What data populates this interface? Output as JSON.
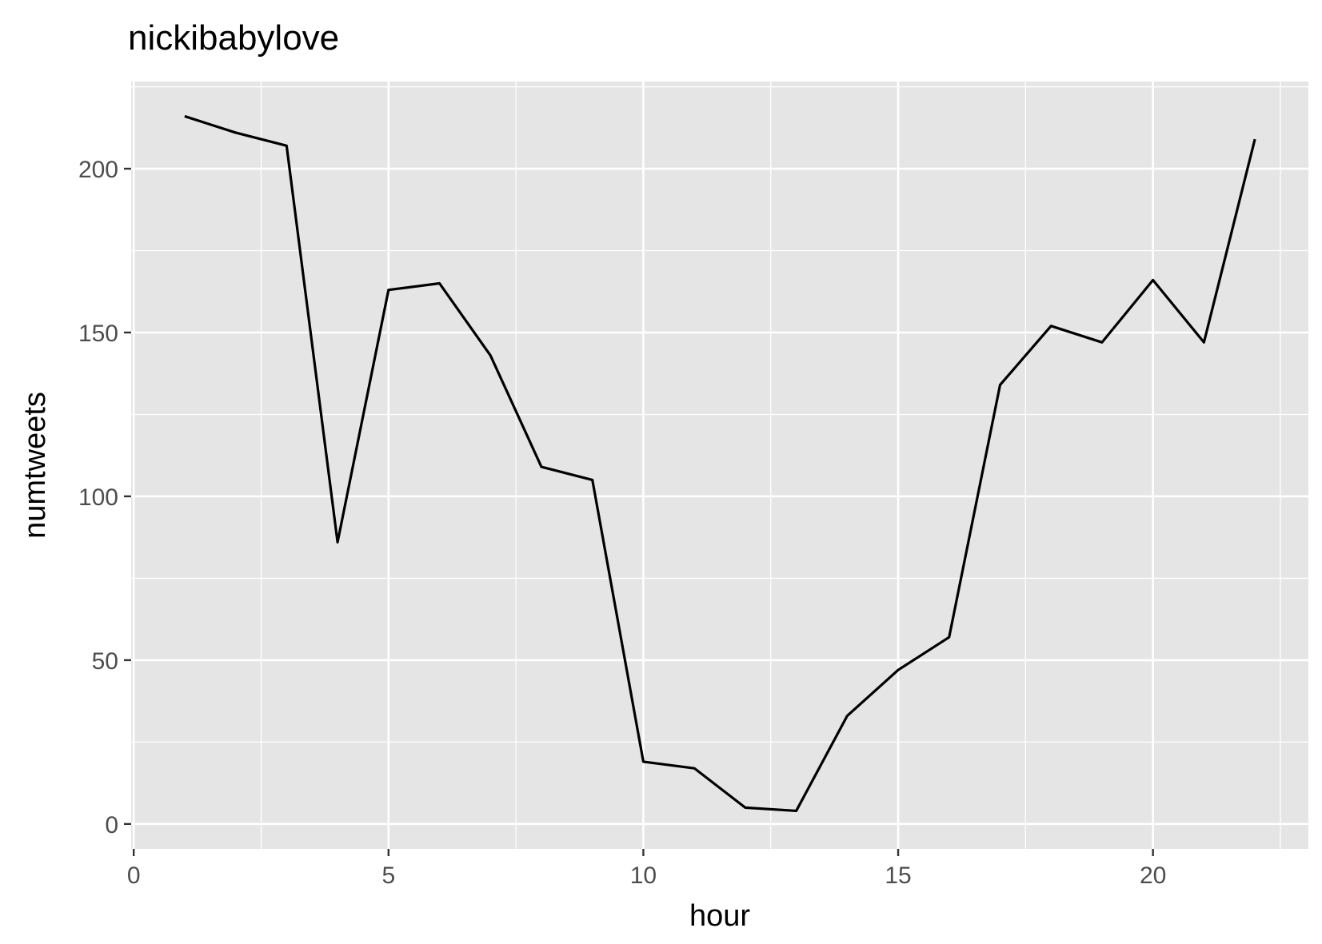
{
  "chart_data": {
    "type": "line",
    "title": "nickibabylove",
    "xlabel": "hour",
    "ylabel": "numtweets",
    "xlim": [
      -0.05,
      23.05
    ],
    "ylim": [
      -7.6,
      226.6
    ],
    "x_ticks": [
      0,
      5,
      10,
      15,
      20
    ],
    "x_minor": [
      2.5,
      7.5,
      12.5,
      17.5,
      22.5
    ],
    "y_ticks": [
      0,
      50,
      100,
      150,
      200
    ],
    "y_minor": [
      25,
      75,
      125,
      175,
      225
    ],
    "grid": true,
    "legend": "none",
    "colors": {
      "panel": "#e5e5e5",
      "grid": "#ffffff",
      "line": "#000000",
      "tick": "#333333"
    },
    "series": [
      {
        "x": [
          1,
          2,
          3,
          4,
          5,
          6,
          7,
          8,
          9,
          10,
          11,
          12,
          13,
          14,
          15,
          16,
          17,
          18,
          19,
          20,
          21,
          22
        ],
        "values": [
          216,
          211,
          207,
          86,
          163,
          165,
          143,
          109,
          105,
          19,
          17,
          5,
          4,
          33,
          47,
          57,
          134,
          152,
          147,
          166,
          147,
          209
        ]
      }
    ]
  }
}
